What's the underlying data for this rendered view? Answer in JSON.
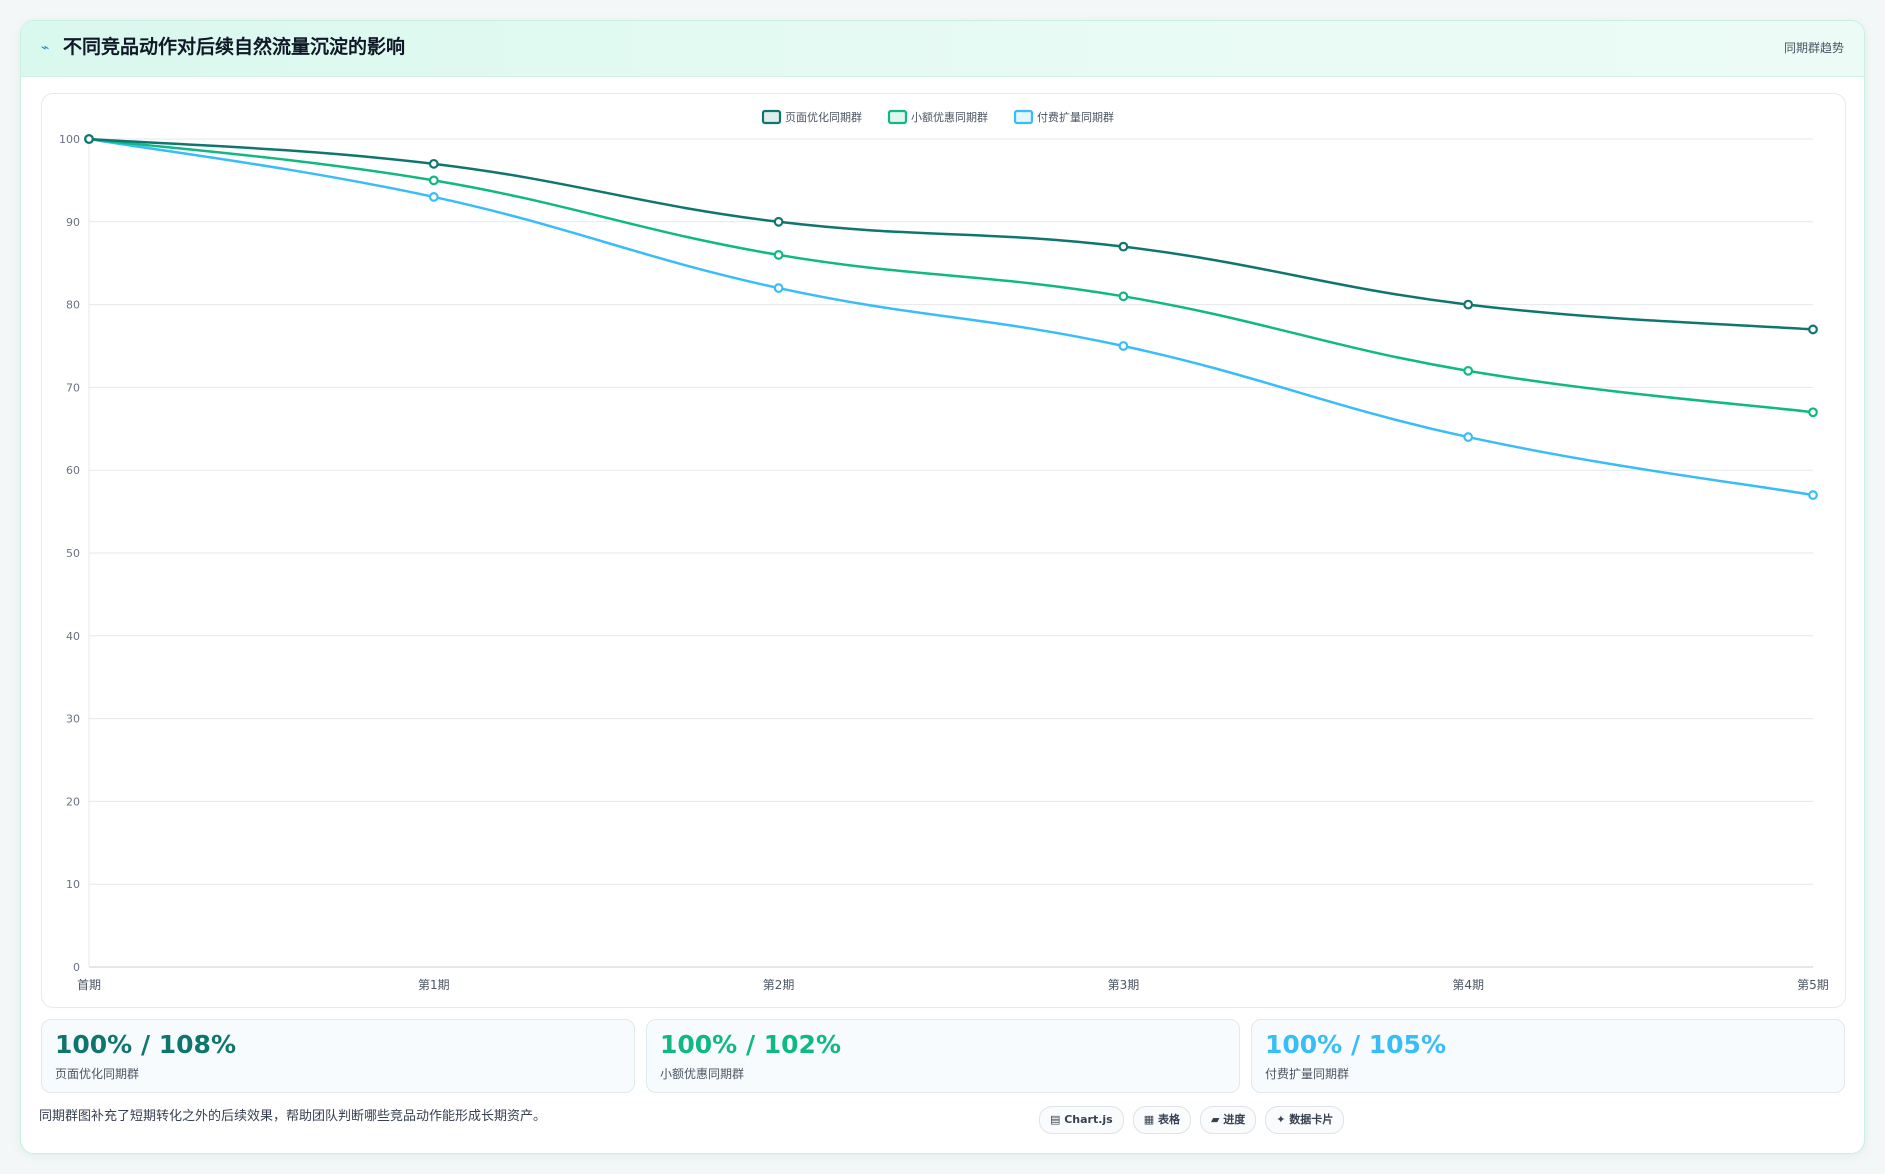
{
  "header": {
    "icon": "trend-line-icon",
    "title": "不同竞品动作对后续自然流量沉淀的影响",
    "tag": "同期群趋势"
  },
  "chart_data": {
    "type": "line",
    "categories": [
      "首期",
      "第1期",
      "第2期",
      "第3期",
      "第4期",
      "第5期"
    ],
    "series": [
      {
        "name": "页面优化同期群",
        "color": "#0f766e",
        "values": [
          100,
          97,
          90,
          87,
          80,
          77
        ]
      },
      {
        "name": "小额优惠同期群",
        "color": "#10b981",
        "values": [
          100,
          95,
          86,
          81,
          72,
          67
        ]
      },
      {
        "name": "付费扩量同期群",
        "color": "#38bdf8",
        "values": [
          100,
          93,
          82,
          75,
          64,
          57
        ]
      }
    ],
    "ylim": [
      0,
      100
    ],
    "yticks": [
      0,
      10,
      20,
      30,
      40,
      50,
      60,
      70,
      80,
      90,
      100
    ],
    "grid": true,
    "legend_position": "top-center"
  },
  "stats": [
    {
      "value": "100% / 108%",
      "label": "页面优化同期群",
      "color": "#0f766e"
    },
    {
      "value": "100% / 102%",
      "label": "小额优惠同期群",
      "color": "#10b981"
    },
    {
      "value": "100% / 105%",
      "label": "付费扩量同期群",
      "color": "#38bdf8"
    }
  ],
  "footnote": "同期群图补充了短期转化之外的后续效果，帮助团队判断哪些竞品动作能形成长期资产。",
  "tags": [
    "▤ Chart.js",
    "▦ 表格",
    "▰ 进度",
    "✦ 数据卡片"
  ]
}
